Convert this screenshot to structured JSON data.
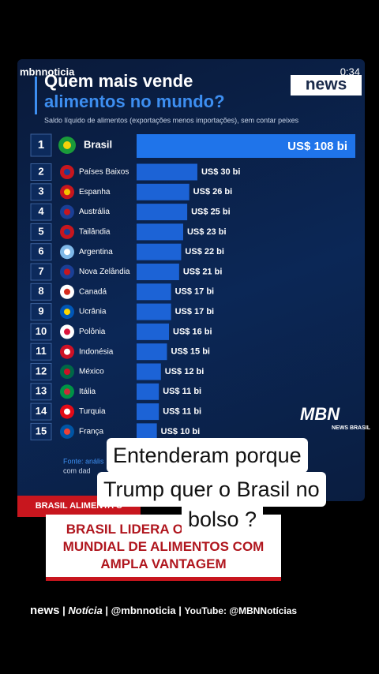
{
  "header": {
    "channel": "mbnnoticia",
    "time": "0:34",
    "logo": "news"
  },
  "chart_data": {
    "type": "bar",
    "title": [
      "Quem mais vende",
      "alimentos no mundo?"
    ],
    "subtitle": "Saldo líquido de alimentos (exportações menos importações), sem contar peixes",
    "ranks": [
      1,
      2,
      3,
      4,
      5,
      6,
      7,
      8,
      9,
      10,
      11,
      12,
      13,
      14,
      15
    ],
    "categories": [
      "Brasil",
      "Países Baixos",
      "Espanha",
      "Austrália",
      "Tailândia",
      "Argentina",
      "Nova Zelândia",
      "Canadá",
      "Ucrânia",
      "Polônia",
      "Indonésia",
      "México",
      "Itália",
      "Turquia",
      "França"
    ],
    "values": [
      108,
      30,
      26,
      25,
      23,
      22,
      21,
      17,
      17,
      16,
      15,
      12,
      11,
      11,
      10
    ],
    "value_labels": [
      "US$ 108 bi",
      "US$ 30 bi",
      "US$ 26 bi",
      "US$ 25 bi",
      "US$ 23 bi",
      "US$ 22 bi",
      "US$ 21 bi",
      "US$ 17 bi",
      "US$ 17 bi",
      "US$ 16 bi",
      "US$ 15 bi",
      "US$ 12 bi",
      "US$ 11 bi",
      "US$ 11 bi",
      "US$ 10 bi"
    ],
    "color": "#1c63d6",
    "highlight_color": "#1f74ea",
    "source": [
      "Fonte: anális",
      "com dad"
    ]
  },
  "brand": {
    "name": "MBN",
    "tag": "NEWS BRASIL"
  },
  "banner": "BRASIL ALIMENTA O MUNDIAL",
  "headline": [
    "BRASIL LIDERA O COMÉRCIO",
    "MUNDIAL DE ALIMENTOS COM",
    "AMPLA VANTAGEM"
  ],
  "caption": [
    "Entenderam porque",
    "Trump quer o Brasil no",
    "bolso ?"
  ],
  "footer": [
    "news",
    "Notícia",
    "@mbnnoticia",
    "YouTube: @MBNNotícias"
  ]
}
